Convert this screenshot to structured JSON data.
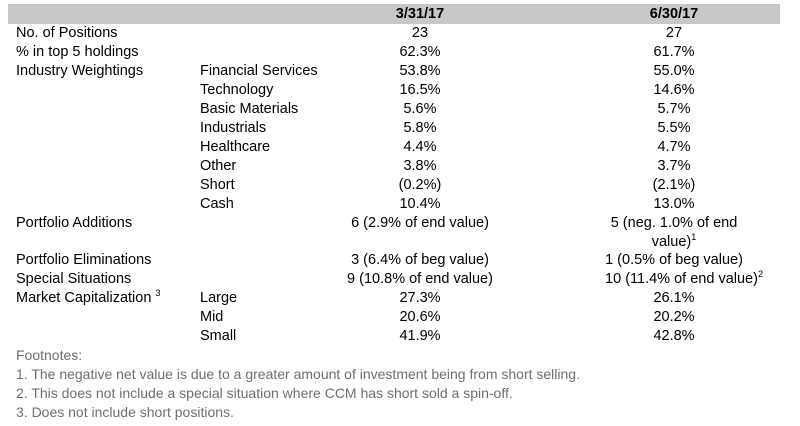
{
  "header": {
    "col1": "3/31/17",
    "col2": "6/30/17"
  },
  "rows": {
    "positions": {
      "label": "No. of Positions",
      "q1": "23",
      "q2": "27"
    },
    "top5": {
      "label": "% in top 5 holdings",
      "q1": "62.3%",
      "q2": "61.7%"
    },
    "industry": {
      "label": "Industry Weightings",
      "items": [
        {
          "name": "Financial Services",
          "q1": "53.8%",
          "q2": "55.0%"
        },
        {
          "name": "Technology",
          "q1": "16.5%",
          "q2": "14.6%"
        },
        {
          "name": "Basic Materials",
          "q1": "5.6%",
          "q2": "5.7%"
        },
        {
          "name": "Industrials",
          "q1": "5.8%",
          "q2": "5.5%"
        },
        {
          "name": "Healthcare",
          "q1": "4.4%",
          "q2": "4.7%"
        },
        {
          "name": "Other",
          "q1": "3.8%",
          "q2": "3.7%"
        },
        {
          "name": "Short",
          "q1": "(0.2%)",
          "q2": "(2.1%)"
        },
        {
          "name": "Cash",
          "q1": "10.4%",
          "q2": "13.0%"
        }
      ]
    },
    "additions": {
      "label": "Portfolio Additions",
      "q1": "6 (2.9% of end value)",
      "q2_line1": "5 (neg. 1.0% of end",
      "q2_line2": "value)",
      "q2_sup": "1"
    },
    "eliminations": {
      "label": "Portfolio Eliminations",
      "q1": "3 (6.4% of beg value)",
      "q2": "1 (0.5% of beg value)"
    },
    "special": {
      "label": "Special Situations",
      "q1": "9 (10.8% of end value)",
      "q2": "10 (11.4% of end value)",
      "q2_sup": "2"
    },
    "marketcap": {
      "label": "Market Capitalization",
      "label_sup": "3",
      "items": [
        {
          "name": "Large",
          "q1": "27.3%",
          "q2": "26.1%"
        },
        {
          "name": "Mid",
          "q1": "20.6%",
          "q2": "20.2%"
        },
        {
          "name": "Small",
          "q1": "41.9%",
          "q2": "42.8%"
        }
      ]
    }
  },
  "footnotes": {
    "title": "Footnotes:",
    "items": [
      "1. The negative net value is due to a greater amount of investment being from short selling.",
      "2. This does not include a special situation where CCM has short sold a spin-off.",
      "3. Does not include short positions."
    ]
  }
}
